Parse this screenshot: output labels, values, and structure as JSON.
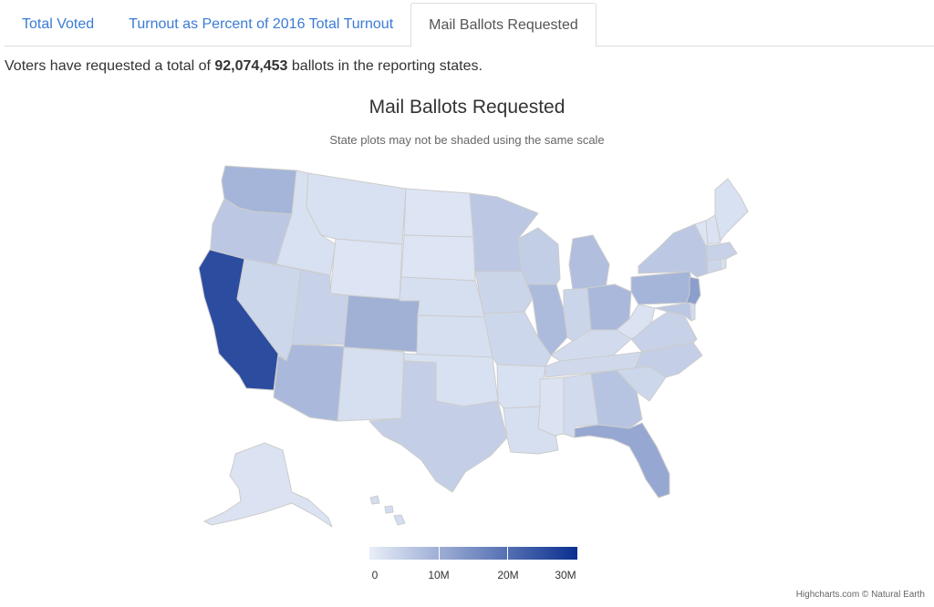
{
  "tabs": [
    {
      "label": "Total Voted"
    },
    {
      "label": "Turnout as Percent of 2016 Total Turnout"
    },
    {
      "label": "Mail Ballots Requested"
    }
  ],
  "summary": {
    "prefix": "Voters have requested a total of ",
    "total": "92,074,453",
    "suffix": " ballots in the reporting states."
  },
  "map": {
    "title": "Mail Ballots Requested",
    "subtitle": "State plots may not be shaded using the same scale",
    "colors": {
      "min": "#e8eef8",
      "max": "#0a2f8f",
      "border": "#cccccc"
    },
    "intensity": {
      "CA": 0.85,
      "WA": 0.3,
      "OR": 0.2,
      "NV": 0.12,
      "ID": 0.07,
      "MT": 0.07,
      "WY": 0.05,
      "UT": 0.15,
      "AZ": 0.28,
      "CO": 0.32,
      "NM": 0.08,
      "ND": 0.05,
      "SD": 0.05,
      "NE": 0.08,
      "KS": 0.08,
      "OK": 0.07,
      "TX": 0.16,
      "MN": 0.2,
      "IA": 0.13,
      "MO": 0.12,
      "AR": 0.07,
      "LA": 0.08,
      "WI": 0.17,
      "IL": 0.27,
      "MI": 0.25,
      "IN": 0.13,
      "OH": 0.28,
      "KY": 0.1,
      "TN": 0.11,
      "MS": 0.06,
      "AL": 0.1,
      "GA": 0.22,
      "FL": 0.37,
      "SC": 0.12,
      "NC": 0.16,
      "VA": 0.15,
      "WV": 0.06,
      "PA": 0.3,
      "NY": 0.2,
      "NJ": 0.42,
      "MD": 0.2,
      "DE": 0.1,
      "CT": 0.12,
      "RI": 0.08,
      "MA": 0.15,
      "VT": 0.05,
      "NH": 0.06,
      "ME": 0.07,
      "AK": 0.06,
      "HI": 0.09
    }
  },
  "legend": {
    "labels": [
      "0",
      "10M",
      "20M",
      "30M"
    ],
    "range": [
      0,
      30000000
    ]
  },
  "credits": "Highcharts.com © Natural Earth"
}
